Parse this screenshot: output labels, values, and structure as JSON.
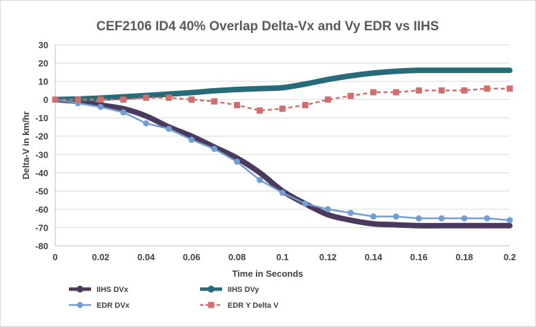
{
  "chart_data": {
    "type": "line",
    "title": "CEF2106 ID4 40% Overlap Delta-Vx and Vy EDR vs IIHS",
    "xlabel": "Time in Seconds",
    "ylabel": "Delta-V in km/hr",
    "xlim": [
      0,
      0.2
    ],
    "ylim": [
      -80,
      30
    ],
    "xticks": [
      "0",
      "0.02",
      "0.04",
      "0.06",
      "0.08",
      "0.1",
      "0.12",
      "0.14",
      "0.16",
      "0.18",
      "0.2"
    ],
    "yticks": [
      "30",
      "20",
      "10",
      "0",
      "-10",
      "-20",
      "-30",
      "-40",
      "-50",
      "-60",
      "-70",
      "-80"
    ],
    "grid": "horizontal",
    "legend": "bottom",
    "x": [
      0,
      0.01,
      0.02,
      0.03,
      0.04,
      0.05,
      0.06,
      0.07,
      0.08,
      0.09,
      0.1,
      0.11,
      0.12,
      0.13,
      0.14,
      0.15,
      0.16,
      0.17,
      0.18,
      0.19,
      0.2
    ],
    "series": [
      {
        "name": "IIHS DVx",
        "color": "#4b3a5e",
        "style": "thick",
        "values": [
          0,
          -1,
          -3,
          -5,
          -9,
          -15,
          -20,
          -26,
          -32,
          -40,
          -50,
          -57,
          -63,
          -66,
          -68,
          -68.5,
          -69,
          -69,
          -69,
          -69,
          -69
        ]
      },
      {
        "name": "IIHS DVy",
        "color": "#276a78",
        "style": "thick",
        "values": [
          0,
          0.3,
          0.8,
          1.5,
          2.2,
          3,
          3.8,
          4.8,
          5.5,
          6,
          6.5,
          8.5,
          11,
          13,
          14.5,
          15.5,
          16,
          16,
          16,
          16,
          16
        ]
      },
      {
        "name": "EDR DVx",
        "color": "#729fcf",
        "style": "circle",
        "values": [
          0,
          -2,
          -4,
          -7,
          -13,
          -16,
          -22,
          -27,
          -34,
          -44,
          -51,
          -57,
          -60,
          -62,
          -64,
          -64,
          -65,
          -65,
          -65,
          -65,
          -66
        ]
      },
      {
        "name": "EDR Y Delta V",
        "color": "#cf706e",
        "style": "dashed-square",
        "values": [
          0,
          0,
          0,
          0,
          1,
          1,
          0,
          -1,
          -3,
          -6,
          -5,
          -3,
          0,
          2,
          4,
          4,
          5,
          5,
          5,
          6,
          6
        ]
      }
    ]
  }
}
